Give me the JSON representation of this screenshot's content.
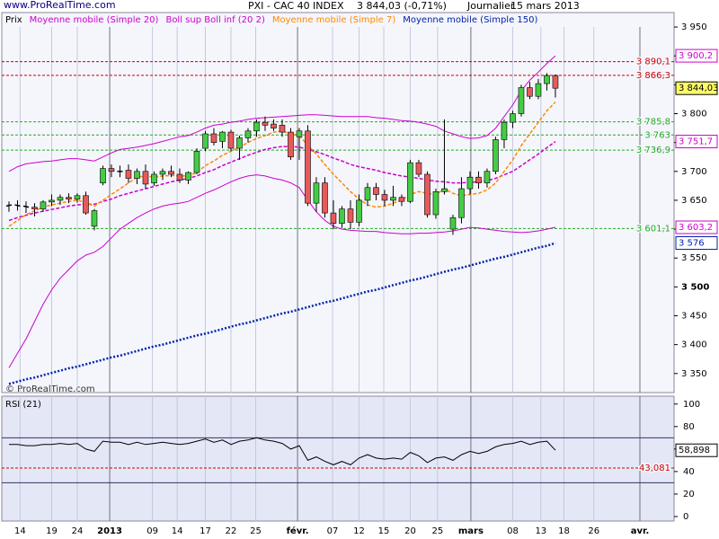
{
  "header": {
    "site": "www.ProRealTime.com",
    "symbol": "PXI - CAC 40 INDEX",
    "quote": "3 844,03 (-0,71%)",
    "period": "Journalier",
    "date": "15 mars 2013",
    "copyright": "© ProRealTime.com"
  },
  "chart_data": [
    {
      "type": "candlestick",
      "name": "Prix",
      "open": [
        3640,
        3642,
        3640,
        3638,
        3635,
        3647,
        3650,
        3655,
        3652,
        3658,
        3605,
        3680,
        3705,
        3700,
        3702,
        3688,
        3700,
        3680,
        3695,
        3700,
        3695,
        3685,
        3698,
        3740,
        3765,
        3752,
        3768,
        3740,
        3758,
        3770,
        3785,
        3782,
        3780,
        3768,
        3760,
        3770,
        3645,
        3680,
        3628,
        3610,
        3635,
        3612,
        3650,
        3672,
        3660,
        3650,
        3655,
        3648,
        3715,
        3695,
        3625,
        3665,
        3600,
        3620,
        3670,
        3690,
        3680,
        3700,
        3755,
        3785,
        3800,
        3845,
        3830,
        3852,
        3866
      ],
      "high": [
        3648,
        3650,
        3648,
        3645,
        3650,
        3660,
        3660,
        3662,
        3662,
        3665,
        3635,
        3710,
        3712,
        3710,
        3712,
        3705,
        3712,
        3700,
        3705,
        3710,
        3705,
        3700,
        3740,
        3770,
        3775,
        3770,
        3772,
        3762,
        3775,
        3790,
        3795,
        3790,
        3790,
        3775,
        3775,
        3780,
        3690,
        3690,
        3650,
        3640,
        3650,
        3660,
        3680,
        3680,
        3668,
        3675,
        3660,
        3720,
        3720,
        3700,
        3670,
        3790,
        3625,
        3690,
        3700,
        3700,
        3705,
        3760,
        3790,
        3805,
        3850,
        3855,
        3860,
        3870,
        3868
      ],
      "low": [
        3630,
        3632,
        3628,
        3622,
        3630,
        3640,
        3642,
        3645,
        3646,
        3625,
        3598,
        3676,
        3690,
        3690,
        3680,
        3678,
        3670,
        3675,
        3685,
        3690,
        3680,
        3678,
        3695,
        3735,
        3745,
        3740,
        3735,
        3720,
        3750,
        3760,
        3770,
        3770,
        3760,
        3720,
        3720,
        3640,
        3630,
        3620,
        3600,
        3602,
        3600,
        3605,
        3640,
        3650,
        3640,
        3640,
        3640,
        3645,
        3690,
        3620,
        3618,
        3660,
        3590,
        3610,
        3660,
        3670,
        3672,
        3695,
        3740,
        3775,
        3795,
        3825,
        3825,
        3840,
        3828
      ],
      "close": [
        3642,
        3640,
        3638,
        3635,
        3647,
        3650,
        3655,
        3652,
        3658,
        3628,
        3632,
        3705,
        3700,
        3700,
        3688,
        3700,
        3678,
        3695,
        3700,
        3695,
        3685,
        3698,
        3735,
        3765,
        3750,
        3768,
        3740,
        3758,
        3770,
        3785,
        3780,
        3775,
        3768,
        3725,
        3770,
        3645,
        3680,
        3628,
        3610,
        3635,
        3612,
        3650,
        3672,
        3660,
        3650,
        3655,
        3648,
        3715,
        3695,
        3625,
        3665,
        3670,
        3620,
        3670,
        3690,
        3680,
        3700,
        3755,
        3785,
        3800,
        3845,
        3830,
        3852,
        3866,
        3844.03
      ],
      "last_label": "3 844,03",
      "up_color": "#44cc44",
      "down_color": "#e85a5a",
      "flat_color": "#000000",
      "series": [
        {
          "name": "Moyenne mobile (Simple 20)",
          "color": "#cc00cc",
          "style": "dashed",
          "last_label": "3 751,7",
          "values": [
            3615,
            3620,
            3624,
            3628,
            3631,
            3634,
            3637,
            3640,
            3642,
            3643,
            3643,
            3648,
            3652,
            3658,
            3662,
            3666,
            3670,
            3674,
            3678,
            3682,
            3685,
            3688,
            3692,
            3698,
            3703,
            3710,
            3716,
            3722,
            3728,
            3733,
            3738,
            3741,
            3743,
            3743,
            3742,
            3738,
            3734,
            3729,
            3723,
            3718,
            3712,
            3708,
            3705,
            3702,
            3698,
            3695,
            3692,
            3690,
            3688,
            3685,
            3683,
            3682,
            3680,
            3680,
            3681,
            3682,
            3684,
            3688,
            3694,
            3700,
            3710,
            3720,
            3730,
            3741,
            3751.7
          ]
        },
        {
          "name": "Boll sup Boll inf (20 2)",
          "color": "#cc00cc",
          "style": "solid",
          "upper_label": "3 900,2",
          "lower_label": "3 603,2",
          "upper": [
            3700,
            3708,
            3713,
            3715,
            3717,
            3718,
            3720,
            3722,
            3722,
            3720,
            3718,
            3725,
            3732,
            3738,
            3740,
            3742,
            3745,
            3748,
            3752,
            3756,
            3760,
            3762,
            3768,
            3775,
            3780,
            3782,
            3785,
            3787,
            3790,
            3792,
            3793,
            3794,
            3795,
            3796,
            3797,
            3798,
            3798,
            3797,
            3796,
            3795,
            3795,
            3795,
            3795,
            3793,
            3792,
            3790,
            3788,
            3787,
            3785,
            3782,
            3778,
            3770,
            3765,
            3760,
            3757,
            3758,
            3762,
            3775,
            3795,
            3815,
            3840,
            3858,
            3872,
            3887,
            3900.2
          ],
          "lower": [
            3360,
            3385,
            3410,
            3440,
            3470,
            3495,
            3515,
            3530,
            3545,
            3555,
            3560,
            3570,
            3585,
            3600,
            3610,
            3620,
            3628,
            3635,
            3640,
            3643,
            3645,
            3648,
            3655,
            3662,
            3668,
            3675,
            3682,
            3688,
            3692,
            3694,
            3692,
            3688,
            3685,
            3680,
            3672,
            3650,
            3630,
            3615,
            3605,
            3600,
            3598,
            3597,
            3596,
            3596,
            3594,
            3593,
            3592,
            3592,
            3593,
            3593,
            3594,
            3595,
            3597,
            3600,
            3603,
            3602,
            3600,
            3598,
            3596,
            3595,
            3594,
            3595,
            3597,
            3600,
            3603.2
          ]
        },
        {
          "name": "Moyenne mobile (Simple 7)",
          "color": "#ff8800",
          "style": "dashed",
          "values": [
            3605,
            3615,
            3625,
            3632,
            3638,
            3642,
            3645,
            3648,
            3650,
            3646,
            3640,
            3650,
            3660,
            3670,
            3680,
            3690,
            3692,
            3690,
            3692,
            3693,
            3692,
            3692,
            3698,
            3710,
            3718,
            3728,
            3735,
            3742,
            3750,
            3757,
            3762,
            3768,
            3770,
            3765,
            3762,
            3745,
            3730,
            3712,
            3695,
            3680,
            3665,
            3652,
            3642,
            3638,
            3640,
            3645,
            3650,
            3660,
            3665,
            3662,
            3660,
            3670,
            3662,
            3658,
            3660,
            3662,
            3668,
            3680,
            3700,
            3720,
            3745,
            3765,
            3785,
            3805,
            3820
          ]
        },
        {
          "name": "Moyenne mobile (Simple 150)",
          "color": "#0022aa",
          "style": "dotted",
          "last_label": "3 576",
          "values": [
            3332,
            3336,
            3340,
            3343,
            3347,
            3351,
            3355,
            3359,
            3362,
            3366,
            3370,
            3374,
            3378,
            3381,
            3385,
            3389,
            3393,
            3397,
            3400,
            3404,
            3408,
            3412,
            3416,
            3419,
            3423,
            3427,
            3431,
            3435,
            3438,
            3442,
            3446,
            3450,
            3454,
            3457,
            3461,
            3465,
            3469,
            3473,
            3476,
            3480,
            3484,
            3488,
            3492,
            3495,
            3499,
            3503,
            3507,
            3511,
            3514,
            3518,
            3522,
            3526,
            3530,
            3533,
            3537,
            3541,
            3545,
            3549,
            3552,
            3556,
            3560,
            3564,
            3568,
            3571,
            3576
          ]
        }
      ],
      "levels": [
        {
          "value": 3890.1,
          "label": "3 890,1",
          "color": "#cc0000"
        },
        {
          "value": 3866.3,
          "label": "3 866,3",
          "color": "#cc0000"
        },
        {
          "value": 3785.8,
          "label": "3 785,8",
          "color": "#22aa22"
        },
        {
          "value": 3763,
          "label": "3 763",
          "color": "#22aa22"
        },
        {
          "value": 3736.9,
          "label": "3 736,9",
          "color": "#22aa22"
        },
        {
          "value": 3601.1,
          "label": "3 601,1",
          "color": "#22aa22"
        }
      ],
      "ylim": [
        3317,
        3975
      ],
      "yticks": [
        {
          "value": 3950,
          "label": "3 950"
        },
        {
          "value": 3900,
          "label": "3 900"
        },
        {
          "value": 3850,
          "label": "3 850"
        },
        {
          "value": 3800,
          "label": "3 800"
        },
        {
          "value": 3750,
          "label": "3 750"
        },
        {
          "value": 3700,
          "label": "3 700"
        },
        {
          "value": 3650,
          "label": "3 650"
        },
        {
          "value": 3600,
          "label": "3 600"
        },
        {
          "value": 3550,
          "label": "3 550"
        },
        {
          "value": 3500,
          "label": "3 500",
          "major": true
        },
        {
          "value": 3450,
          "label": "3 450"
        },
        {
          "value": 3400,
          "label": "3 400"
        },
        {
          "value": 3350,
          "label": "3 350"
        }
      ],
      "xlim": [
        -0.84,
        77.9
      ],
      "xticks": [
        {
          "value": 1.3,
          "label": "14"
        },
        {
          "value": 5,
          "label": "19"
        },
        {
          "value": 8,
          "label": "24"
        },
        {
          "value": 11.8,
          "label": "2013",
          "major": true
        },
        {
          "value": 16.8,
          "label": "09"
        },
        {
          "value": 19.7,
          "label": "14"
        },
        {
          "value": 23,
          "label": "17"
        },
        {
          "value": 26,
          "label": "22"
        },
        {
          "value": 28.9,
          "label": "25"
        },
        {
          "value": 33.8,
          "label": "févr.",
          "major": true
        },
        {
          "value": 37.9,
          "label": "07"
        },
        {
          "value": 41,
          "label": "12"
        },
        {
          "value": 43.9,
          "label": "15"
        },
        {
          "value": 47,
          "label": "20"
        },
        {
          "value": 50.2,
          "label": "25"
        },
        {
          "value": 54.1,
          "label": "mars",
          "major": true
        },
        {
          "value": 59,
          "label": "08"
        },
        {
          "value": 62.3,
          "label": "13"
        },
        {
          "value": 65,
          "label": "18"
        },
        {
          "value": 68.5,
          "label": "26"
        },
        {
          "value": 73.9,
          "label": "avr.",
          "major": true
        }
      ]
    },
    {
      "type": "line",
      "title": "RSI (21)",
      "color": "#000000",
      "last_label": "58,898",
      "values": [
        64,
        64,
        63,
        63,
        64,
        64,
        65,
        64,
        65,
        60,
        58,
        67,
        66,
        66,
        64,
        66,
        64,
        65,
        66,
        65,
        64,
        65,
        67,
        69,
        66,
        68,
        64,
        67,
        68,
        70,
        68,
        67,
        65,
        60,
        63,
        50,
        53,
        49,
        46,
        49,
        46,
        52,
        55,
        52,
        51,
        52,
        51,
        57,
        54,
        48,
        52,
        53,
        50,
        55,
        58,
        56,
        58,
        62,
        64,
        65,
        67,
        64,
        66,
        67,
        58.898
      ],
      "levels": [
        {
          "value": 70,
          "color": "#333366"
        },
        {
          "value": 43.081,
          "label": "43,081",
          "color": "#cc0000"
        },
        {
          "value": 30,
          "color": "#333366"
        }
      ],
      "ylim": [
        -4,
        107
      ],
      "yticks": [
        100,
        80,
        60,
        40,
        20,
        0
      ]
    }
  ]
}
